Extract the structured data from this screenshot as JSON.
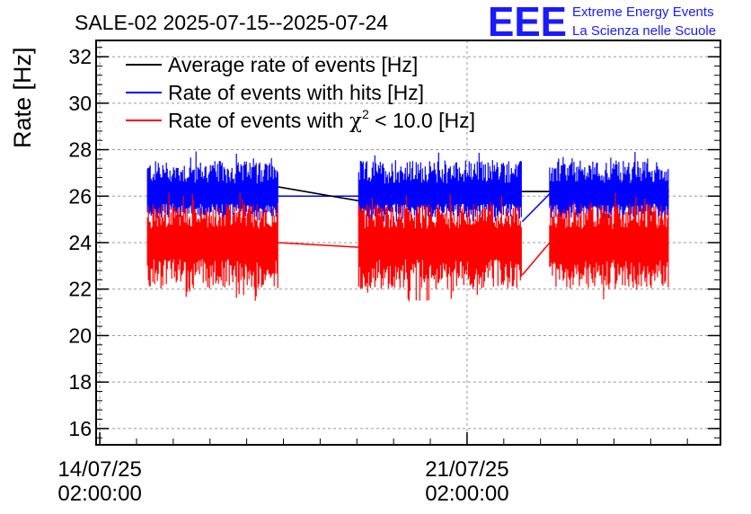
{
  "header": {
    "title": "SALE-02 2025-07-15--2025-07-24",
    "logo_text": "EEE",
    "logo_line1": "Extreme Energy Events",
    "logo_line2": "La Scienza nelle Scuole"
  },
  "colors": {
    "average": "#000000",
    "hits": "#0000ff",
    "chi2": "#ff0000",
    "logo": "#1a1aff"
  },
  "chart_data": {
    "type": "line",
    "title": "SALE-02 2025-07-15--2025-07-24",
    "xlabel": "",
    "ylabel": "Rate [Hz]",
    "ylim": [
      15.3,
      32.7
    ],
    "yticks": [
      16,
      18,
      20,
      22,
      24,
      26,
      28,
      30,
      32
    ],
    "ytick_labels": [
      "16",
      "18",
      "20",
      "22",
      "24",
      "26",
      "28",
      "30",
      "32"
    ],
    "xlim_days": [
      -0.1,
      16.9
    ],
    "xticks_days": [
      0,
      10
    ],
    "xtick_labels": [
      {
        "date": "14/07/25",
        "time": "02:00:00"
      },
      {
        "date": "21/07/25",
        "time": "02:00:00"
      }
    ],
    "grid": true,
    "legend_position": "top-left",
    "segments_days": [
      [
        1.3,
        4.85
      ],
      [
        7.05,
        11.5
      ],
      [
        12.25,
        15.5
      ]
    ],
    "series": [
      {
        "name": "Average rate of events [Hz]",
        "legend_label": "Average rate of events [Hz]",
        "color": "#000000",
        "x": [
          1.3,
          4.85,
          7.05,
          11.5,
          12.25,
          15.5
        ],
        "values": [
          26.6,
          26.4,
          25.8,
          26.2,
          26.2,
          26.2
        ]
      },
      {
        "name": "Rate of events with hits [Hz]",
        "legend_label": "Rate of events with hits [Hz]",
        "color": "#0000ff",
        "mean": 26.0,
        "noise_low": 24.8,
        "noise_high": 28.0,
        "x": [
          1.3,
          4.85,
          7.05,
          11.5,
          12.25,
          15.5
        ],
        "values": [
          26.0,
          26.0,
          26.0,
          24.9,
          26.1,
          26.0
        ]
      },
      {
        "name": "Rate of events with chi2 < 10.0 [Hz]",
        "legend_label_prefix": "Rate of events with ",
        "legend_label_chi": "χ",
        "legend_label_sup": "2",
        "legend_label_suffix": " < 10.0 [Hz]",
        "color": "#ff0000",
        "mean": 24.0,
        "noise_low": 21.4,
        "noise_high": 26.2,
        "x": [
          1.3,
          4.85,
          7.05,
          11.5,
          12.25,
          15.5
        ],
        "values": [
          24.0,
          24.0,
          23.8,
          22.6,
          24.0,
          24.0
        ]
      }
    ]
  }
}
